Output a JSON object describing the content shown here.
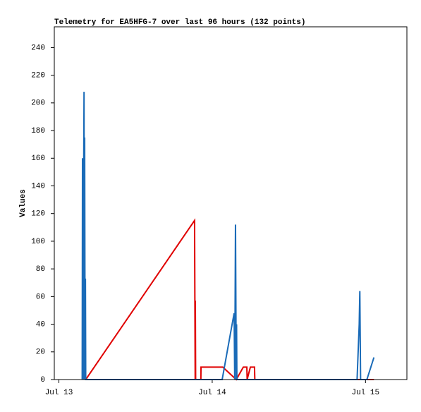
{
  "chart_data": {
    "type": "line",
    "title": "Telemetry for EA5HFG-7 over last 96 hours (132 points)",
    "y_label": "Values",
    "xlim": [
      -0.03,
      2.27
    ],
    "xticks": [
      {
        "value": 0,
        "label": "Jul 13"
      },
      {
        "value": 1,
        "label": "Jul 14"
      },
      {
        "value": 2,
        "label": "Jul 15"
      }
    ],
    "ylim": [
      0,
      255
    ],
    "yticks": [
      0,
      20,
      40,
      60,
      80,
      100,
      120,
      140,
      160,
      180,
      200,
      220,
      240
    ],
    "series": [
      {
        "color": "#e00000",
        "x": [
          0.175,
          0.885,
          0.889,
          0.89,
          0.892,
          0.926,
          0.927,
          1.069,
          1.157,
          1.203,
          1.226,
          1.228,
          1.249,
          1.276,
          1.278,
          2.055
        ],
        "values": [
          0,
          115,
          0,
          57,
          0,
          0,
          9,
          9,
          0,
          9,
          9,
          0,
          9,
          9,
          0,
          0
        ]
      },
      {
        "color": "#1a6bb8",
        "x": [
          0.152,
          0.154,
          0.157,
          0.159,
          0.164,
          0.166,
          0.168,
          0.171,
          0.173,
          0.175,
          1.065,
          1.143,
          1.147,
          1.152,
          1.157,
          1.159,
          1.161,
          1.945,
          1.959,
          1.963,
          1.968,
          2.009,
          2.055
        ],
        "values": [
          0,
          160,
          0,
          80,
          208,
          0,
          175,
          0,
          73,
          0,
          0,
          48,
          0,
          112,
          0,
          40,
          0,
          0,
          40,
          64,
          0,
          0,
          16
        ]
      }
    ]
  }
}
